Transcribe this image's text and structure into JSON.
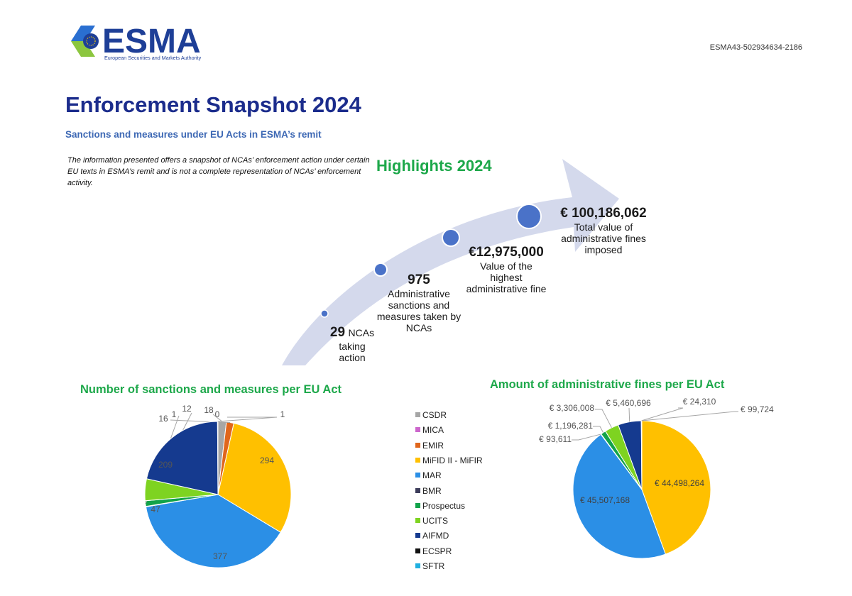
{
  "header": {
    "logo_name": "ESMA",
    "logo_subtitle": "European Securities and Markets Authority",
    "doc_reference": "ESMA43-502934634-2186"
  },
  "title": "Enforcement Snapshot 2024",
  "subtitle": "Sanctions and measures under EU Acts in ESMA’s remit",
  "disclaimer": "The information presented offers a snapshot of NCAs’ enforcement action under certain EU texts in ESMA’s remit and is not a complete representation of NCAs’ enforcement activity.",
  "highlights": {
    "title": "Highlights 2024",
    "items": [
      {
        "value": "29",
        "label_inline": "NCAs",
        "label_rest": [
          "taking",
          "action"
        ]
      },
      {
        "value": "975",
        "label": [
          "Administrative",
          "sanctions and",
          "measures taken by",
          "NCAs"
        ]
      },
      {
        "value": "€12,975,000",
        "label": [
          "Value of the",
          "highest",
          "administrative fine"
        ]
      },
      {
        "value": "€ 100,186,062",
        "label": [
          "Total value of",
          "administrative fines",
          "imposed"
        ]
      }
    ]
  },
  "legend": {
    "items": [
      {
        "name": "CSDR",
        "color": "#a6a6a6"
      },
      {
        "name": "MICA",
        "color": "#cc66cc"
      },
      {
        "name": "EMIR",
        "color": "#e0661c"
      },
      {
        "name": "MiFID II - MiFIR",
        "color": "#ffc000"
      },
      {
        "name": "MAR",
        "color": "#2b8fe6"
      },
      {
        "name": "BMR",
        "color": "#3c3c5a"
      },
      {
        "name": "Prospectus",
        "color": "#12a34a"
      },
      {
        "name": "UCITS",
        "color": "#7ed321"
      },
      {
        "name": "AIFMD",
        "color": "#153a8f"
      },
      {
        "name": "ECSPR",
        "color": "#111111"
      },
      {
        "name": "SFTR",
        "color": "#20b0e0"
      }
    ]
  },
  "chart_data": [
    {
      "type": "pie",
      "title": "Number of sanctions and measures per EU Act",
      "categories": [
        "CSDR",
        "MICA",
        "EMIR",
        "MiFID II - MiFIR",
        "MAR",
        "BMR",
        "Prospectus",
        "UCITS",
        "AIFMD",
        "ECSPR",
        "SFTR"
      ],
      "values": [
        18,
        0,
        16,
        294,
        377,
        1,
        12,
        47,
        209,
        0,
        1
      ],
      "labels": [
        "18",
        "0",
        "16",
        "294",
        "377",
        "1",
        "12",
        "47",
        "209",
        "",
        "1"
      ],
      "legend": "right"
    },
    {
      "type": "pie",
      "title": "Amount of administrative fines per EU Act",
      "categories": [
        "MiFID II - MiFIR",
        "MAR",
        "BMR",
        "Prospectus",
        "UCITS",
        "AIFMD",
        "ECSPR",
        "SFTR",
        "CSDR"
      ],
      "values": [
        44498264,
        45507168,
        93611,
        1196281,
        3306008,
        5460696,
        24310,
        99724,
        0
      ],
      "labels": [
        "€ 44,498,264",
        "€ 45,507,168",
        "€ 93,611",
        "€ 1,196,281",
        "€ 3,306,008",
        "€ 5,460,696",
        "€ 24,310",
        "€ 99,724",
        ""
      ]
    }
  ]
}
